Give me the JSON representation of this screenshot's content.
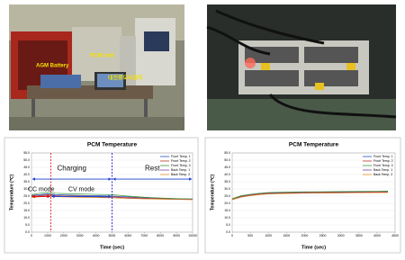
{
  "photos": [
    {
      "labels": [
        "PCM Unit",
        "AGM Battery",
        "대전류모사장치"
      ]
    },
    {
      "labels": []
    }
  ],
  "chart_data": [
    {
      "type": "line",
      "title": "PCM Temperature",
      "x_label": "Time (sec)",
      "y_label": "Temperature (℃)",
      "x": [
        0,
        500,
        1000,
        1500,
        2000,
        3000,
        4000,
        5000,
        6000,
        7000,
        8000,
        9000,
        10000
      ],
      "series": [
        {
          "name": "Front Temp. 1",
          "color": "#1f4fbf",
          "values": [
            25.5,
            26,
            26.5,
            26,
            25.8,
            25.5,
            25.3,
            25,
            24.5,
            24,
            23.5,
            23.2,
            23
          ]
        },
        {
          "name": "Front Temp. 2",
          "color": "#c0392b",
          "values": [
            25,
            25.5,
            26,
            25.5,
            25.2,
            25,
            24.8,
            24.5,
            24,
            23.6,
            23.3,
            23,
            22.8
          ]
        },
        {
          "name": "Front Temp. 3",
          "color": "#3a9a3a",
          "values": [
            26,
            27,
            27.5,
            27,
            26.8,
            26.5,
            26.2,
            26,
            25,
            24.2,
            23.7,
            23.3,
            23.1
          ]
        },
        {
          "name": "Back Temp. 1",
          "color": "#7b3fa0",
          "values": [
            24.5,
            25,
            25.5,
            25,
            24.8,
            24.6,
            24.4,
            24,
            23.6,
            23.3,
            23,
            22.8,
            22.7
          ]
        },
        {
          "name": "Back Temp. 2",
          "color": "#e08a1e",
          "values": [
            24,
            24.5,
            25,
            24.6,
            24.4,
            24.2,
            24,
            23.8,
            23.4,
            23.1,
            22.9,
            22.7,
            22.5
          ]
        }
      ],
      "xlim": [
        0,
        10000
      ],
      "xticks": [
        0,
        1000,
        2000,
        3000,
        4000,
        5000,
        6000,
        7000,
        8000,
        9000,
        10000
      ],
      "ylim": [
        0,
        55
      ],
      "yticks": [
        {
          "value": 0,
          "label": "0.0"
        },
        {
          "value": 5,
          "label": "5.0"
        },
        {
          "value": 10,
          "label": "10.0"
        },
        {
          "value": 15,
          "label": "15.0"
        },
        {
          "value": 20,
          "label": "20.0"
        },
        {
          "value": 25,
          "label": "25.0"
        },
        {
          "value": 30,
          "label": "30.0"
        },
        {
          "value": 35,
          "label": "35.0"
        },
        {
          "value": 40,
          "label": "40.0"
        },
        {
          "value": 45,
          "label": "45.0"
        },
        {
          "value": 50,
          "label": "50.0"
        },
        {
          "value": 55,
          "label": "55.0"
        }
      ],
      "grid": true,
      "vlines": [
        {
          "x": 1200,
          "color": "#e00000"
        },
        {
          "x": 5000,
          "color": "#0000cc"
        }
      ],
      "phases": [
        {
          "label": "Charging",
          "from": 0,
          "to": 5000,
          "color": "#1a3fd0"
        },
        {
          "label": "Rest",
          "from": 5000,
          "to": 10000,
          "color": "#1a3fd0"
        }
      ],
      "modes": [
        {
          "label": "CC mode",
          "from": 0,
          "to": 1200,
          "color": "#e00000"
        },
        {
          "label": "CV mode",
          "from": 1200,
          "to": 5000,
          "color": "#1a3fd0"
        }
      ]
    },
    {
      "type": "line",
      "title": "PCM Temperature",
      "x_label": "Time (sec)",
      "y_label": "Temperature (℃)",
      "x": [
        0,
        250,
        500,
        750,
        1000,
        1500,
        2000,
        2500,
        3000,
        3500,
        4000,
        4300
      ],
      "series": [
        {
          "name": "Front Temp. 1",
          "color": "#1f4fbf",
          "values": [
            23,
            25,
            26,
            26.8,
            27.2,
            27.5,
            27.7,
            27.8,
            27.9,
            28,
            28.1,
            28.2
          ]
        },
        {
          "name": "Front Temp. 2",
          "color": "#c0392b",
          "values": [
            22.8,
            24.8,
            25.8,
            26.5,
            27,
            27.3,
            27.5,
            27.6,
            27.7,
            27.8,
            27.9,
            28
          ]
        },
        {
          "name": "Front Temp. 3",
          "color": "#3a9a3a",
          "values": [
            23.2,
            25.3,
            26.3,
            27,
            27.5,
            27.8,
            28,
            28.1,
            28.2,
            28.3,
            28.4,
            28.5
          ]
        },
        {
          "name": "Back Temp. 1",
          "color": "#7b3fa0",
          "values": [
            22.6,
            24.5,
            25.5,
            26.2,
            26.7,
            27,
            27.2,
            27.3,
            27.4,
            27.5,
            27.6,
            27.7
          ]
        },
        {
          "name": "Back Temp. 2",
          "color": "#e08a1e",
          "values": [
            22.5,
            24.3,
            25.3,
            26,
            26.5,
            26.8,
            27,
            27.1,
            27.2,
            27.3,
            27.4,
            27.5
          ]
        }
      ],
      "xlim": [
        0,
        4500
      ],
      "xticks": [
        0,
        500,
        1000,
        1500,
        2000,
        2500,
        3000,
        3500,
        4000,
        4500
      ],
      "ylim": [
        0,
        55
      ],
      "yticks": [
        {
          "value": 0,
          "label": "0.0"
        },
        {
          "value": 5,
          "label": "5.0"
        },
        {
          "value": 10,
          "label": "10.0"
        },
        {
          "value": 15,
          "label": "15.0"
        },
        {
          "value": 20,
          "label": "20.0"
        },
        {
          "value": 25,
          "label": "25.0"
        },
        {
          "value": 30,
          "label": "30.0"
        },
        {
          "value": 35,
          "label": "35.0"
        },
        {
          "value": 40,
          "label": "40.0"
        },
        {
          "value": 45,
          "label": "45.0"
        },
        {
          "value": 50,
          "label": "50.0"
        },
        {
          "value": 55,
          "label": "55.0"
        }
      ],
      "grid": true
    }
  ]
}
